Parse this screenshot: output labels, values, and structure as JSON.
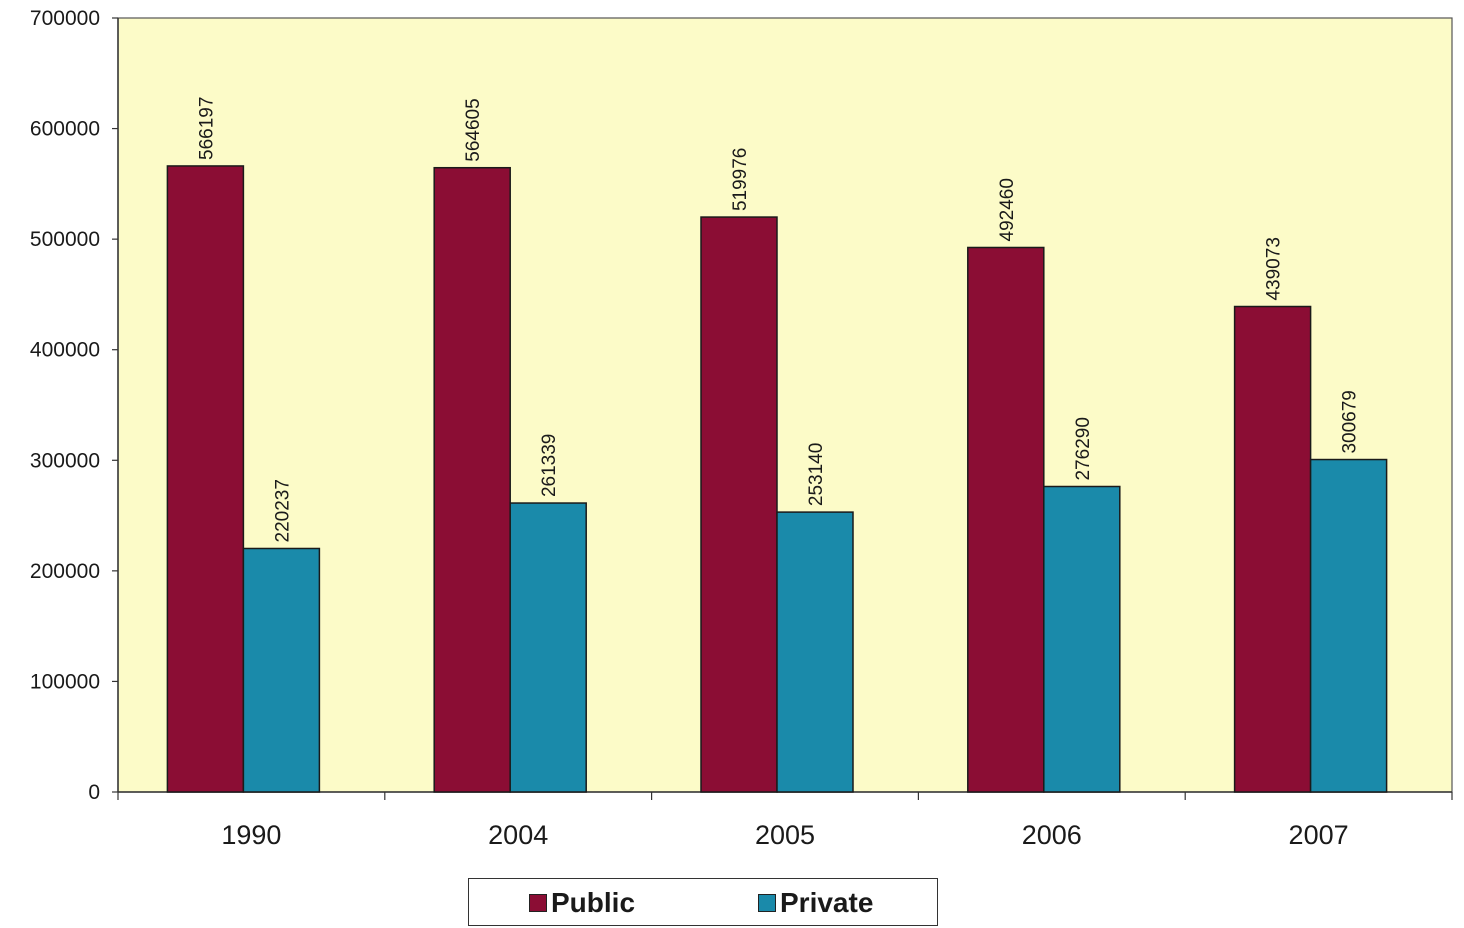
{
  "chart_data": {
    "type": "bar",
    "title": "",
    "xlabel": "",
    "ylabel": "",
    "categories": [
      "1990",
      "2004",
      "2005",
      "2006",
      "2007"
    ],
    "series": [
      {
        "name": "Public",
        "values": [
          566197,
          564605,
          519976,
          492460,
          439073
        ],
        "color": "#8b0d34"
      },
      {
        "name": "Private",
        "values": [
          220237,
          261339,
          253140,
          276290,
          300679
        ],
        "color": "#1a8aaa"
      }
    ],
    "ylim": [
      0,
      700000
    ],
    "yticks": [
      "0",
      "100000",
      "200000",
      "300000",
      "400000",
      "500000",
      "600000",
      "700000"
    ],
    "data_labels": {
      "Public": [
        "566197",
        "564605",
        "519976",
        "492460",
        "439073"
      ],
      "Private": [
        "220237",
        "261339",
        "253140",
        "276290",
        "300679"
      ]
    },
    "grid": false,
    "plot_background": "#fcfbc8",
    "legend_position": "bottom"
  },
  "legend": {
    "items": [
      {
        "label": "Public",
        "color": "#8b0d34"
      },
      {
        "label": "Private",
        "color": "#1a8aaa"
      }
    ]
  }
}
